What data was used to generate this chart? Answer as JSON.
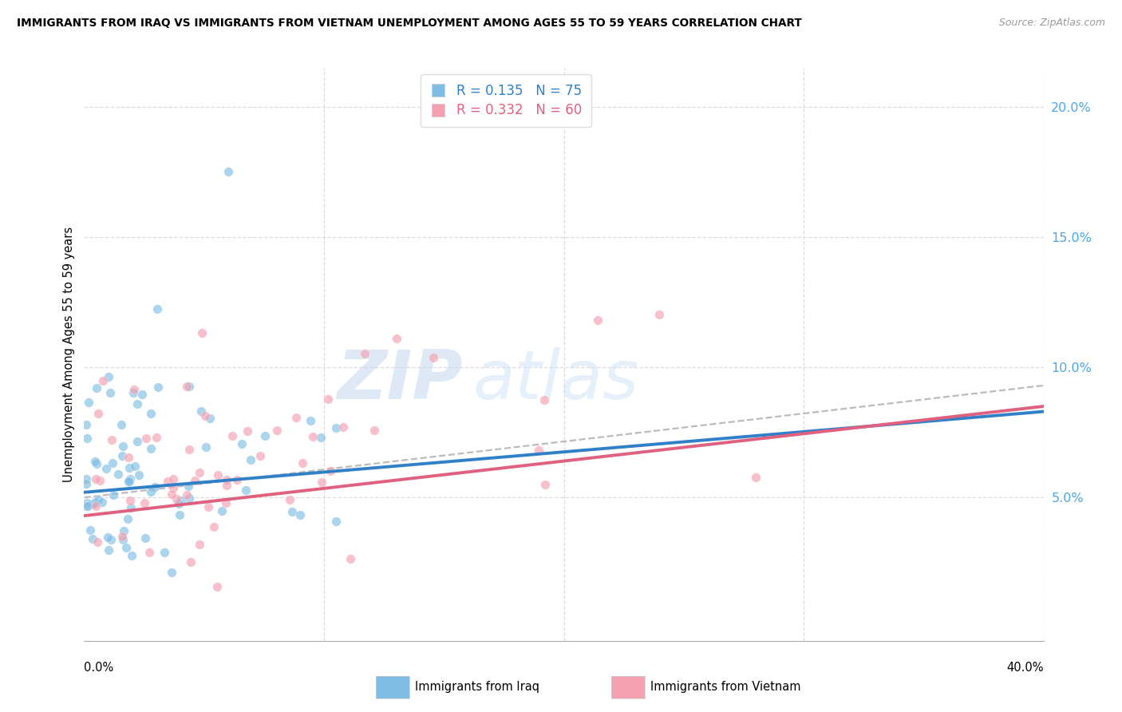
{
  "title": "IMMIGRANTS FROM IRAQ VS IMMIGRANTS FROM VIETNAM UNEMPLOYMENT AMONG AGES 55 TO 59 YEARS CORRELATION CHART",
  "source": "Source: ZipAtlas.com",
  "ylabel": "Unemployment Among Ages 55 to 59 years",
  "ytick_labels": [
    "5.0%",
    "10.0%",
    "15.0%",
    "20.0%"
  ],
  "ytick_values": [
    0.05,
    0.1,
    0.15,
    0.2
  ],
  "xlim": [
    0.0,
    0.4
  ],
  "ylim": [
    -0.005,
    0.215
  ],
  "legend_iraq_R": "0.135",
  "legend_iraq_N": "75",
  "legend_vietnam_R": "0.332",
  "legend_vietnam_N": "60",
  "legend_label_iraq": "Immigrants from Iraq",
  "legend_label_vietnam": "Immigrants from Vietnam",
  "color_iraq": "#7fbde4",
  "color_vietnam": "#f4a0b0",
  "color_iraq_line": "#3080c8",
  "color_vietnam_line": "#e06080",
  "color_dashed_line": "#bbbbbb",
  "watermark_zip": "ZIP",
  "watermark_atlas": "atlas",
  "iraq_line_x0": 0.0,
  "iraq_line_y0": 0.052,
  "iraq_line_x1": 0.4,
  "iraq_line_y1": 0.083,
  "vietnam_line_x0": 0.0,
  "vietnam_line_y0": 0.043,
  "vietnam_line_x1": 0.4,
  "vietnam_line_y1": 0.085,
  "dash_line_x0": 0.0,
  "dash_line_y0": 0.05,
  "dash_line_x1": 0.4,
  "dash_line_y1": 0.093
}
